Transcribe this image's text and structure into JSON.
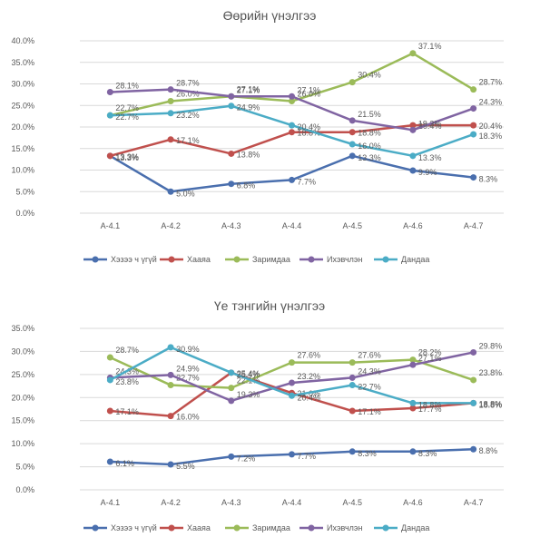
{
  "chart_data": [
    {
      "type": "line",
      "title": "Өөрийн үнэлгээ",
      "categories": [
        "A-4.1",
        "A-4.2",
        "A-4.3",
        "A-4.4",
        "A-4.5",
        "A-4.6",
        "A-4.7"
      ],
      "ylim": [
        0,
        40
      ],
      "yticks": [
        0,
        5,
        10,
        15,
        20,
        25,
        30,
        35,
        40
      ],
      "ytick_labels": [
        "0.0%",
        "5.0%",
        "10.0%",
        "15.0%",
        "20.0%",
        "25.0%",
        "30.0%",
        "35.0%",
        "40.0%"
      ],
      "grid": true,
      "legend_position": "bottom",
      "series": [
        {
          "name": "Хэзээ ч үгүй",
          "color": "#4a6fae",
          "values": [
            13.3,
            5.0,
            6.8,
            7.7,
            13.3,
            9.9,
            8.3
          ],
          "labels": [
            "13.3%",
            "5.0%",
            "6.8%",
            "7.7%",
            "13.3%",
            "9.9%",
            "8.3%"
          ]
        },
        {
          "name": "Хааяа",
          "color": "#c0504d",
          "values": [
            13.3,
            17.1,
            13.8,
            18.8,
            18.8,
            20.4,
            20.4
          ],
          "labels": [
            "13.3%",
            "17.1%",
            "13.8%",
            "18.8%",
            "18.8%",
            "20.4%",
            "20.4%"
          ]
        },
        {
          "name": "Заримдаа",
          "color": "#9bbb59",
          "values": [
            22.7,
            26.0,
            27.1,
            26.0,
            30.4,
            37.1,
            28.7
          ],
          "labels": [
            "22.7%",
            "26.0%",
            "27.1%",
            "26.0%",
            "30.4%",
            "37.1%",
            "28.7%"
          ]
        },
        {
          "name": "Ихэвчлэн",
          "color": "#8064a2",
          "values": [
            28.1,
            28.7,
            27.1,
            27.1,
            21.5,
            19.3,
            24.3
          ],
          "labels": [
            "28.1%",
            "28.7%",
            "27.1%",
            "27.1%",
            "21.5%",
            "19.3%",
            "24.3%"
          ]
        },
        {
          "name": "Дандаа",
          "color": "#4bacc6",
          "values": [
            22.7,
            23.2,
            24.9,
            20.4,
            16.0,
            13.3,
            18.3
          ],
          "labels": [
            "22.7%",
            "23.2%",
            "24.9%",
            "20.4%",
            "16.0%",
            "13.3%",
            "18.3%"
          ]
        }
      ]
    },
    {
      "type": "line",
      "title": "Үе тэнгийн үнэлгээ",
      "categories": [
        "A-4.1",
        "A-4.2",
        "A-4.3",
        "A-4.4",
        "A-4.5",
        "A-4.6",
        "A-4.7"
      ],
      "ylim": [
        0,
        35
      ],
      "yticks": [
        0,
        5,
        10,
        15,
        20,
        25,
        30,
        35
      ],
      "ytick_labels": [
        "0.0%",
        "5.0%",
        "10.0%",
        "15.0%",
        "20.0%",
        "25.0%",
        "30.0%",
        "35.0%"
      ],
      "grid": true,
      "legend_position": "bottom",
      "series": [
        {
          "name": "Хэзээ ч үгүй",
          "color": "#4a6fae",
          "values": [
            6.1,
            5.5,
            7.2,
            7.7,
            8.3,
            8.3,
            8.8
          ],
          "labels": [
            "6.1%",
            "5.5%",
            "7.2%",
            "7.7%",
            "8.3%",
            "8.3%",
            "8.8%"
          ]
        },
        {
          "name": "Хааяа",
          "color": "#c0504d",
          "values": [
            17.1,
            16.0,
            25.4,
            21.0,
            17.1,
            17.7,
            18.8
          ],
          "labels": [
            "17.1%",
            "16.0%",
            "25.4%",
            "21.0%",
            "17.1%",
            "17.7%",
            "18.8%"
          ]
        },
        {
          "name": "Заримдаа",
          "color": "#9bbb59",
          "values": [
            28.7,
            22.7,
            22.1,
            27.6,
            27.6,
            28.2,
            23.8
          ],
          "labels": [
            "28.7%",
            "22.7%",
            "22.1%",
            "27.6%",
            "27.6%",
            "28.2%",
            "23.8%"
          ]
        },
        {
          "name": "Ихэвчлэн",
          "color": "#8064a2",
          "values": [
            24.3,
            24.9,
            19.3,
            23.2,
            24.3,
            27.1,
            29.8
          ],
          "labels": [
            "24.3%",
            "24.9%",
            "19.3%",
            "23.2%",
            "24.3%",
            "27.1%",
            "29.8%"
          ]
        },
        {
          "name": "Дандаа",
          "color": "#4bacc6",
          "values": [
            23.8,
            30.9,
            25.4,
            20.4,
            22.7,
            18.8,
            18.8
          ],
          "labels": [
            "23.8%",
            "30.9%",
            "25.4%",
            "20.4%",
            "22.7%",
            "18.8%",
            "18.8%"
          ]
        }
      ]
    }
  ]
}
